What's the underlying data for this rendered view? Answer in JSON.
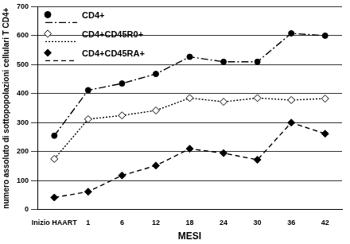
{
  "chart_data": {
    "type": "line",
    "x_label": "MESI",
    "y_label": "numero assoluto di sottopopolazioni cellulari T CD4+",
    "categories": [
      "Inizio HAART",
      "1",
      "6",
      "12",
      "18",
      "24",
      "30",
      "36",
      "42"
    ],
    "series": [
      {
        "name": "CD4+",
        "color": "#000000",
        "marker": "circle",
        "line_style": "dashdot",
        "values": [
          255,
          412,
          435,
          468,
          527,
          510,
          510,
          608,
          600
        ]
      },
      {
        "name": "CD4+CD45R0+",
        "color": "#000000",
        "marker": "diamond_open",
        "line_style": "dotted",
        "values": [
          175,
          312,
          325,
          342,
          385,
          372,
          385,
          378,
          383
        ]
      },
      {
        "name": "CD4+CD45RA+",
        "color": "#000000",
        "marker": "diamond",
        "line_style": "dashed",
        "values": [
          42,
          62,
          118,
          152,
          210,
          195,
          172,
          300,
          262
        ]
      }
    ],
    "ylim": [
      0,
      700
    ],
    "yticks": [
      0,
      100,
      200,
      300,
      400,
      500,
      600,
      700
    ],
    "grid": true,
    "legend": "upper left"
  }
}
